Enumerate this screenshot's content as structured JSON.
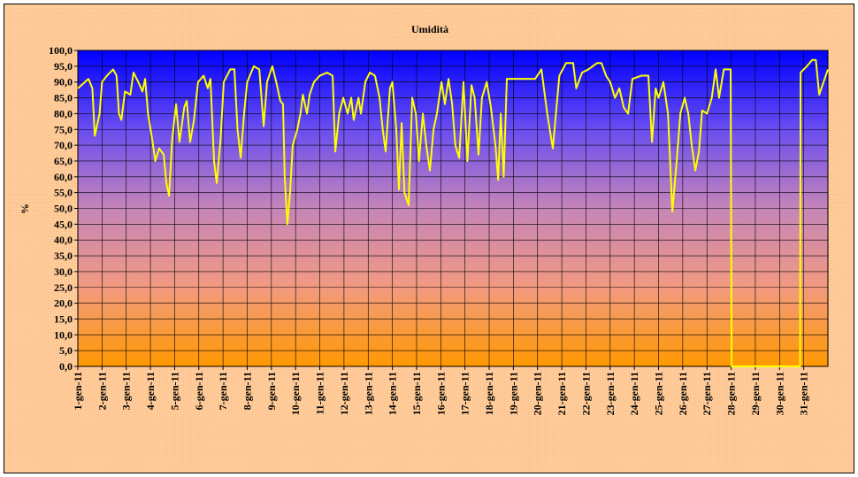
{
  "chart_data": {
    "type": "line",
    "title": "Umidità",
    "y_label": "%",
    "xlim": [
      0,
      31
    ],
    "xticks": [
      {
        "value": 0,
        "label": "1-gen-11"
      },
      {
        "value": 1,
        "label": "2-gen-11"
      },
      {
        "value": 2,
        "label": "3-gen-11"
      },
      {
        "value": 3,
        "label": "4-gen-11"
      },
      {
        "value": 4,
        "label": "5-gen-11"
      },
      {
        "value": 5,
        "label": "6-gen-11"
      },
      {
        "value": 6,
        "label": "7-gen-11"
      },
      {
        "value": 7,
        "label": "8-gen-11"
      },
      {
        "value": 8,
        "label": "9-gen-11"
      },
      {
        "value": 9,
        "label": "10-gen-11"
      },
      {
        "value": 10,
        "label": "11-gen-11"
      },
      {
        "value": 11,
        "label": "12-gen-11"
      },
      {
        "value": 12,
        "label": "13-gen-11"
      },
      {
        "value": 13,
        "label": "14-gen-11"
      },
      {
        "value": 14,
        "label": "15-gen-11"
      },
      {
        "value": 15,
        "label": "16-gen-11"
      },
      {
        "value": 16,
        "label": "17-gen-11"
      },
      {
        "value": 17,
        "label": "18-gen-11"
      },
      {
        "value": 18,
        "label": "19-gen-11"
      },
      {
        "value": 19,
        "label": "20-gen-11"
      },
      {
        "value": 20,
        "label": "21-gen-11"
      },
      {
        "value": 21,
        "label": "22-gen-11"
      },
      {
        "value": 22,
        "label": "23-gen-11"
      },
      {
        "value": 23,
        "label": "24-gen-11"
      },
      {
        "value": 24,
        "label": "25-gen-11"
      },
      {
        "value": 25,
        "label": "26-gen-11"
      },
      {
        "value": 26,
        "label": "27-gen-11"
      },
      {
        "value": 27,
        "label": "28-gen-11"
      },
      {
        "value": 28,
        "label": "29-gen-11"
      },
      {
        "value": 29,
        "label": "30-gen-11"
      },
      {
        "value": 30,
        "label": "31-gen-11"
      }
    ],
    "ylim": [
      0,
      100
    ],
    "yticks": [
      {
        "value": 0,
        "label": "0,0"
      },
      {
        "value": 5,
        "label": "5,0"
      },
      {
        "value": 10,
        "label": "10,0"
      },
      {
        "value": 15,
        "label": "15,0"
      },
      {
        "value": 20,
        "label": "20,0"
      },
      {
        "value": 25,
        "label": "25,0"
      },
      {
        "value": 30,
        "label": "30,0"
      },
      {
        "value": 35,
        "label": "35,0"
      },
      {
        "value": 40,
        "label": "40,0"
      },
      {
        "value": 45,
        "label": "45,0"
      },
      {
        "value": 50,
        "label": "50,0"
      },
      {
        "value": 55,
        "label": "55,0"
      },
      {
        "value": 60,
        "label": "60,0"
      },
      {
        "value": 65,
        "label": "65,0"
      },
      {
        "value": 70,
        "label": "70,0"
      },
      {
        "value": 75,
        "label": "75,0"
      },
      {
        "value": 80,
        "label": "80,0"
      },
      {
        "value": 85,
        "label": "85,0"
      },
      {
        "value": 90,
        "label": "90,0"
      },
      {
        "value": 95,
        "label": "95,0"
      },
      {
        "value": 100,
        "label": "100,0"
      }
    ],
    "grid": true,
    "x": [
      0,
      0.44,
      0.6,
      0.7,
      0.9,
      1.0,
      1.2,
      1.46,
      1.6,
      1.7,
      1.8,
      1.95,
      2.17,
      2.3,
      2.5,
      2.67,
      2.78,
      2.9,
      3.07,
      3.2,
      3.36,
      3.55,
      3.66,
      3.77,
      3.9,
      4.06,
      4.2,
      4.4,
      4.5,
      4.64,
      4.8,
      4.97,
      5.2,
      5.37,
      5.48,
      5.63,
      5.74,
      5.9,
      6.03,
      6.3,
      6.47,
      6.6,
      6.73,
      6.87,
      7.0,
      7.27,
      7.5,
      7.68,
      7.82,
      8.04,
      8.2,
      8.37,
      8.48,
      8.55,
      8.66,
      8.77,
      8.88,
      9.07,
      9.2,
      9.3,
      9.47,
      9.58,
      9.76,
      10.0,
      10.3,
      10.53,
      10.64,
      10.8,
      10.97,
      11.15,
      11.3,
      11.4,
      11.6,
      11.7,
      11.88,
      12.07,
      12.28,
      12.47,
      12.6,
      12.72,
      12.9,
      13.0,
      13.16,
      13.27,
      13.38,
      13.5,
      13.67,
      13.82,
      13.97,
      14.1,
      14.26,
      14.4,
      14.55,
      14.7,
      14.84,
      15.03,
      15.17,
      15.32,
      15.47,
      15.6,
      15.76,
      15.94,
      16.1,
      16.27,
      16.4,
      16.56,
      16.7,
      16.9,
      17.07,
      17.26,
      17.37,
      17.48,
      17.6,
      17.73,
      18.9,
      19.16,
      19.4,
      19.63,
      19.9,
      20.18,
      20.47,
      20.6,
      20.84,
      21.1,
      21.28,
      21.46,
      21.64,
      21.83,
      22.0,
      22.2,
      22.38,
      22.56,
      22.74,
      22.92,
      23.29,
      23.58,
      23.73,
      23.88,
      24.0,
      24.2,
      24.39,
      24.57,
      24.75,
      24.9,
      25.08,
      25.23,
      25.37,
      25.52,
      25.67,
      25.8,
      26.0,
      26.2,
      26.36,
      26.5,
      26.7,
      26.98,
      27.02,
      29.85,
      29.87,
      30.13,
      30.35,
      30.5,
      30.64,
      31.0
    ],
    "series": [
      {
        "name": "Umidità",
        "color": "#ffff00",
        "values": [
          88,
          91,
          88,
          73,
          80,
          90,
          92,
          94,
          92,
          80,
          78,
          87,
          86,
          93,
          90,
          87,
          91,
          80,
          72,
          65,
          69,
          67,
          58,
          54,
          72,
          83,
          71,
          82,
          84,
          71,
          78,
          90,
          92,
          88,
          91,
          65,
          58,
          72,
          90,
          94,
          94,
          75,
          66,
          80,
          90,
          95,
          94,
          76,
          90,
          95,
          90,
          84,
          83,
          60,
          45,
          55,
          70,
          75,
          80,
          86,
          80,
          86,
          90,
          92,
          93,
          92,
          68,
          80,
          85,
          80,
          85,
          78,
          85,
          80,
          90,
          93,
          92,
          85,
          75,
          68,
          88,
          90,
          75,
          56,
          77,
          55,
          51,
          85,
          80,
          65,
          80,
          70,
          62,
          75,
          80,
          90,
          83,
          91,
          83,
          70,
          66,
          90,
          65,
          89,
          85,
          67,
          85,
          90,
          82,
          70,
          59,
          80,
          60,
          91,
          91,
          94,
          80,
          69,
          92,
          96,
          96,
          88,
          93,
          94,
          95,
          96,
          96,
          92,
          90,
          85,
          88,
          82,
          80,
          91,
          92,
          92,
          71,
          88,
          85,
          90,
          80,
          49,
          65,
          80,
          85,
          80,
          70,
          62,
          68,
          81,
          80,
          85,
          94,
          85,
          94,
          94,
          0,
          0,
          93,
          95,
          97,
          97,
          86,
          94
        ]
      }
    ]
  }
}
